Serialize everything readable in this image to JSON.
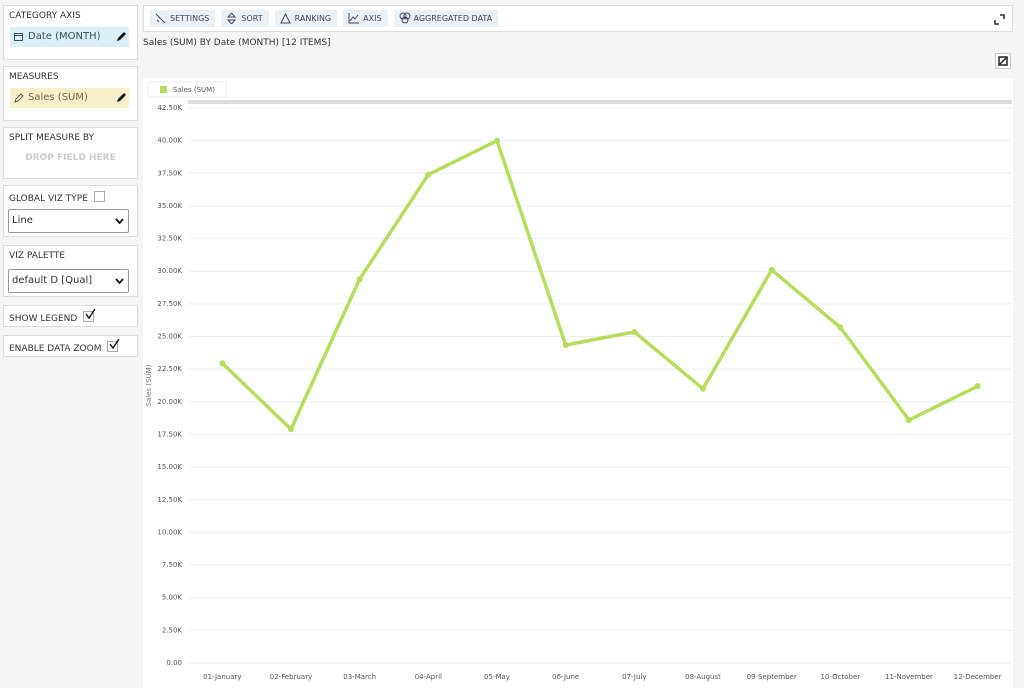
{
  "sidebar": {
    "category_axis": {
      "title": "CATEGORY AXIS",
      "field": "Date (MONTH)"
    },
    "measures": {
      "title": "MEASURES",
      "field": "Sales (SUM)"
    },
    "split_measure": {
      "title": "SPLIT MEASURE BY",
      "placeholder": "DROP FIELD HERE"
    },
    "viz_type": {
      "title": "GLOBAL VIZ TYPE",
      "checked": false,
      "value": "Line"
    },
    "palette": {
      "title": "VIZ PALETTE",
      "value": "default D [Qual]"
    },
    "show_legend": {
      "label": "SHOW LEGEND",
      "checked": true
    },
    "data_zoom": {
      "label": "ENABLE DATA ZOOM",
      "checked": true
    }
  },
  "toolbar": [
    "SETTINGS",
    "SORT",
    "RANKING",
    "AXIS",
    "AGGREGATED DATA"
  ],
  "chart_data": {
    "type": "line",
    "title": "Sales (SUM) BY Date (MONTH) [12 ITEMS]",
    "y_label": "Sales (SUM)",
    "categories": [
      "01-January",
      "02-February",
      "03-March",
      "04-April",
      "05-May",
      "06-June",
      "07-July",
      "08-August",
      "09-September",
      "10-October",
      "11-November",
      "12-December"
    ],
    "series": [
      {
        "name": "Sales (SUM)",
        "color": "#b8dc5e",
        "values": [
          22950,
          17900,
          29400,
          37400,
          40000,
          24350,
          25350,
          21000,
          30100,
          25700,
          18600,
          21200
        ]
      }
    ],
    "ylim": [
      0,
      42500
    ],
    "yticks": [
      {
        "value": 0,
        "label": "0.00"
      },
      {
        "value": 2500,
        "label": "2.50K"
      },
      {
        "value": 5000,
        "label": "5.00K"
      },
      {
        "value": 7500,
        "label": "7.50K"
      },
      {
        "value": 10000,
        "label": "10.00K"
      },
      {
        "value": 12500,
        "label": "12.50K"
      },
      {
        "value": 15000,
        "label": "15.00K"
      },
      {
        "value": 17500,
        "label": "17.50K"
      },
      {
        "value": 20000,
        "label": "20.00K"
      },
      {
        "value": 22500,
        "label": "22.50K"
      },
      {
        "value": 25000,
        "label": "25.00K"
      },
      {
        "value": 27500,
        "label": "27.50K"
      },
      {
        "value": 30000,
        "label": "30.00K"
      },
      {
        "value": 32500,
        "label": "32.50K"
      },
      {
        "value": 35000,
        "label": "35.00K"
      },
      {
        "value": 37500,
        "label": "37.50K"
      },
      {
        "value": 40000,
        "label": "40.00K"
      },
      {
        "value": 42500,
        "label": "42.50K"
      }
    ],
    "grid": true,
    "legend": true
  }
}
